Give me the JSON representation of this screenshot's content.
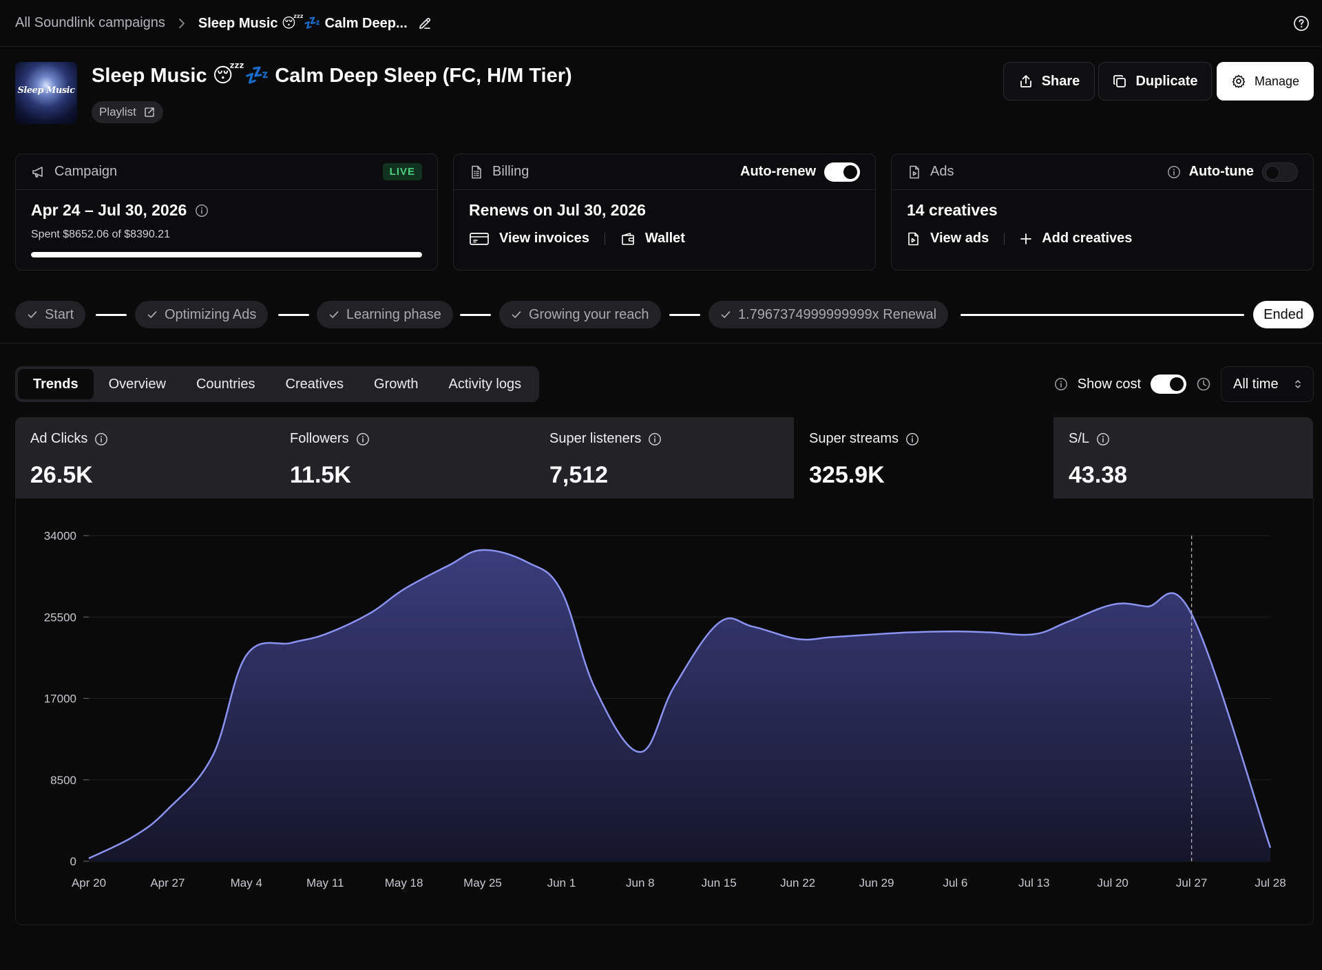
{
  "breadcrumb": {
    "root": "All Soundlink campaigns",
    "current": "Sleep Music 😴💤 Calm Deep..."
  },
  "header": {
    "cover_text": "Sleep Music",
    "title": "Sleep Music 😴💤 Calm Deep Sleep (FC, H/M Tier)",
    "type_chip": "Playlist",
    "share_label": "Share",
    "duplicate_label": "Duplicate",
    "manage_label": "Manage"
  },
  "campaign_card": {
    "heading": "Campaign",
    "status": "LIVE",
    "date_range": "Apr 24 – Jul 30, 2026",
    "spent": "Spent $8652.06 of $8390.21",
    "progress_fraction": 1.0
  },
  "billing_card": {
    "heading": "Billing",
    "toggle_label": "Auto-renew",
    "toggle_on": true,
    "renews": "Renews on Jul 30, 2026",
    "invoices_label": "View invoices",
    "wallet_label": "Wallet"
  },
  "ads_card": {
    "heading": "Ads",
    "toggle_label": "Auto-tune",
    "toggle_on": false,
    "creatives": "14 creatives",
    "view_ads_label": "View ads",
    "add_label": "Add creatives"
  },
  "timeline": {
    "stages": [
      "Start",
      "Optimizing Ads",
      "Learning phase",
      "Growing your reach",
      "1.7967374999999999x Renewal"
    ],
    "ended_label": "Ended"
  },
  "tabs": [
    "Trends",
    "Overview",
    "Countries",
    "Creatives",
    "Growth",
    "Activity logs"
  ],
  "active_tab": "Trends",
  "controls": {
    "show_cost_label": "Show cost",
    "show_cost_on": true,
    "range_label": "All time"
  },
  "metrics": [
    {
      "label": "Ad Clicks",
      "value": "26.5K"
    },
    {
      "label": "Followers",
      "value": "11.5K"
    },
    {
      "label": "Super listeners",
      "value": "7,512"
    },
    {
      "label": "Super streams",
      "value": "325.9K"
    },
    {
      "label": "S/L",
      "value": "43.38"
    }
  ],
  "colors": {
    "accent_line": "#8b93f0",
    "area_top": "#3a3d7c",
    "area_bottom": "#15152a",
    "live_badge": "#4ccf7c"
  },
  "chart_data": {
    "type": "area",
    "x": [
      "Apr 20",
      "Apr 24",
      "Apr 27",
      "May 1",
      "May 4",
      "May 8",
      "May 11",
      "May 15",
      "May 18",
      "May 22",
      "May 25",
      "May 29",
      "Jun 1",
      "Jun 4",
      "Jun 8",
      "Jun 11",
      "Jun 15",
      "Jun 18",
      "Jun 22",
      "Jun 25",
      "Jun 29",
      "Jul 2",
      "Jul 6",
      "Jul 9",
      "Jul 13",
      "Jul 16",
      "Jul 20",
      "Jul 23",
      "Jul 27",
      "Jul 28"
    ],
    "values": [
      300,
      2600,
      5400,
      11000,
      21500,
      22800,
      23700,
      25900,
      28400,
      30900,
      32500,
      31200,
      28200,
      18000,
      11400,
      18200,
      24900,
      24500,
      23200,
      23400,
      23700,
      23900,
      24000,
      23900,
      23700,
      25000,
      26800,
      26600,
      25800,
      1400
    ],
    "xticks": [
      "Apr 20",
      "Apr 27",
      "May 4",
      "May 11",
      "May 18",
      "May 25",
      "Jun 1",
      "Jun 8",
      "Jun 15",
      "Jun 22",
      "Jun 29",
      "Jul 6",
      "Jul 13",
      "Jul 20",
      "Jul 27",
      "Jul 28"
    ],
    "yticks": [
      0,
      8500,
      17000,
      25500,
      34000
    ],
    "ylim": [
      0,
      34000
    ],
    "marker_x": "Jul 27",
    "grid": true
  }
}
